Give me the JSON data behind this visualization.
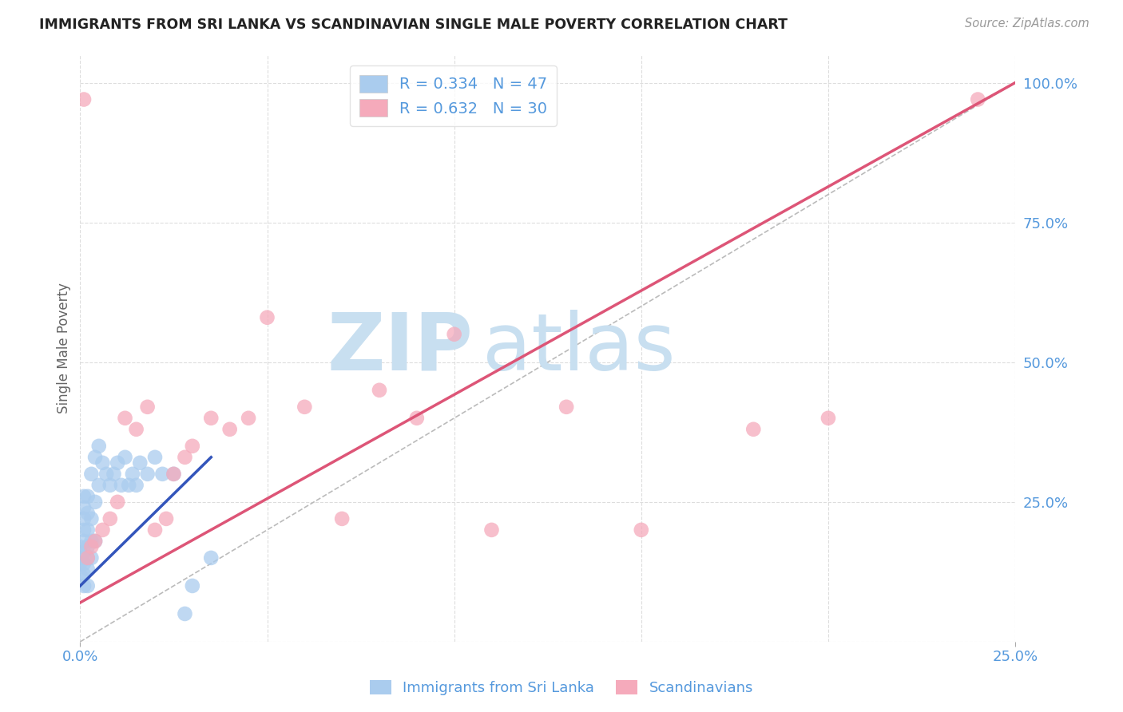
{
  "title": "IMMIGRANTS FROM SRI LANKA VS SCANDINAVIAN SINGLE MALE POVERTY CORRELATION CHART",
  "source": "Source: ZipAtlas.com",
  "ylabel": "Single Male Poverty",
  "xlim": [
    0.0,
    0.25
  ],
  "ylim": [
    0.0,
    1.05
  ],
  "legend_label1": "R = 0.334   N = 47",
  "legend_label2": "R = 0.632   N = 30",
  "legend_series1": "Immigrants from Sri Lanka",
  "legend_series2": "Scandinavians",
  "blue_scatter_x": [
    0.0,
    0.0,
    0.0,
    0.0,
    0.001,
    0.001,
    0.001,
    0.001,
    0.001,
    0.001,
    0.001,
    0.001,
    0.001,
    0.002,
    0.002,
    0.002,
    0.002,
    0.002,
    0.002,
    0.002,
    0.003,
    0.003,
    0.003,
    0.003,
    0.004,
    0.004,
    0.004,
    0.005,
    0.005,
    0.006,
    0.007,
    0.008,
    0.009,
    0.01,
    0.011,
    0.012,
    0.013,
    0.014,
    0.015,
    0.016,
    0.018,
    0.02,
    0.022,
    0.025,
    0.028,
    0.03,
    0.035
  ],
  "blue_scatter_y": [
    0.12,
    0.14,
    0.15,
    0.17,
    0.1,
    0.12,
    0.14,
    0.16,
    0.18,
    0.2,
    0.22,
    0.24,
    0.26,
    0.1,
    0.13,
    0.15,
    0.17,
    0.2,
    0.23,
    0.26,
    0.15,
    0.18,
    0.22,
    0.3,
    0.18,
    0.25,
    0.33,
    0.28,
    0.35,
    0.32,
    0.3,
    0.28,
    0.3,
    0.32,
    0.28,
    0.33,
    0.28,
    0.3,
    0.28,
    0.32,
    0.3,
    0.33,
    0.3,
    0.3,
    0.05,
    0.1,
    0.15
  ],
  "pink_scatter_x": [
    0.001,
    0.002,
    0.003,
    0.004,
    0.006,
    0.008,
    0.01,
    0.012,
    0.015,
    0.018,
    0.02,
    0.023,
    0.025,
    0.028,
    0.03,
    0.035,
    0.04,
    0.045,
    0.05,
    0.06,
    0.07,
    0.08,
    0.09,
    0.1,
    0.11,
    0.13,
    0.15,
    0.18,
    0.2,
    0.24
  ],
  "pink_scatter_y": [
    0.97,
    0.15,
    0.17,
    0.18,
    0.2,
    0.22,
    0.25,
    0.4,
    0.38,
    0.42,
    0.2,
    0.22,
    0.3,
    0.33,
    0.35,
    0.4,
    0.38,
    0.4,
    0.58,
    0.42,
    0.22,
    0.45,
    0.4,
    0.55,
    0.2,
    0.42,
    0.2,
    0.38,
    0.4,
    0.97
  ],
  "blue_line_x": [
    0.0,
    0.035
  ],
  "blue_line_y": [
    0.1,
    0.33
  ],
  "pink_line_x": [
    0.0,
    0.25
  ],
  "pink_line_y": [
    0.07,
    1.0
  ],
  "dash_line_x": [
    0.0,
    0.25
  ],
  "dash_line_y": [
    0.0,
    1.0
  ],
  "blue_dot_color": "#aaccee",
  "pink_dot_color": "#f5aabb",
  "blue_line_color": "#3355bb",
  "pink_line_color": "#dd5577",
  "dash_line_color": "#bbbbbb",
  "grid_color": "#dddddd",
  "title_color": "#222222",
  "axis_color": "#5599dd",
  "watermark_zip_color": "#c8dff0",
  "watermark_atlas_color": "#c8dff0",
  "background_color": "#ffffff",
  "x_ticks": [
    0.0,
    0.25
  ],
  "x_tick_labels": [
    "0.0%",
    "25.0%"
  ],
  "y_ticks_right": [
    0.25,
    0.5,
    0.75,
    1.0
  ],
  "y_tick_labels_right": [
    "25.0%",
    "50.0%",
    "75.0%",
    "100.0%"
  ]
}
